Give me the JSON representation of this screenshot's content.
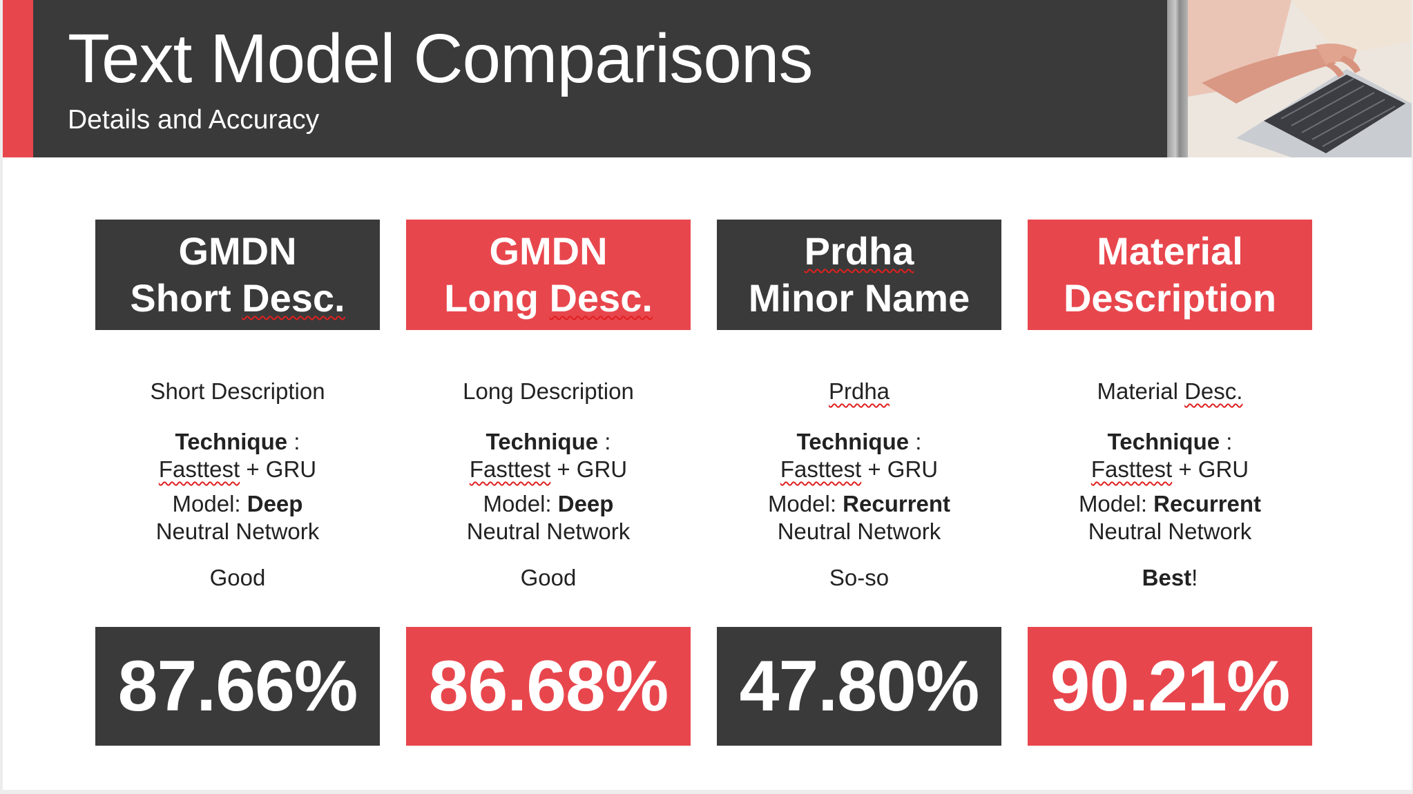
{
  "header": {
    "title": "Text Model Comparisons",
    "subtitle": "Details and Accuracy"
  },
  "colors": {
    "dark": "#3a3a3a",
    "red": "#e8464d"
  },
  "cards": [
    {
      "theme": "dark",
      "title_line1": "GMDN",
      "title_line2_a": "Short ",
      "title_line2_b": "Desc.",
      "source_a": "Short Description",
      "source_b": "",
      "technique_label": "Technique",
      "technique_sep": " :",
      "technique_a": "Fasttest",
      "technique_b": " + GRU",
      "model_label": "Model: ",
      "model_type": "Deep",
      "model_rest": "Neutral Network",
      "rating_bold": "",
      "rating_rest": "Good",
      "accuracy": "87.66%"
    },
    {
      "theme": "red",
      "title_line1": "GMDN",
      "title_line2_a": "Long ",
      "title_line2_b": "Desc.",
      "source_a": "Long Description",
      "source_b": "",
      "technique_label": "Technique",
      "technique_sep": " :",
      "technique_a": "Fasttest",
      "technique_b": " + GRU",
      "model_label": "Model: ",
      "model_type": "Deep",
      "model_rest": "Neutral Network",
      "rating_bold": "",
      "rating_rest": "Good",
      "accuracy": "86.68%"
    },
    {
      "theme": "dark",
      "title_line1": "Prdha",
      "title_line2_a": "Minor Name",
      "title_line2_b": "",
      "source_a": "",
      "source_b": "Prdha",
      "technique_label": "Technique",
      "technique_sep": " :",
      "technique_a": "Fasttest",
      "technique_b": " + GRU",
      "model_label": "Model: ",
      "model_type": "Recurrent",
      "model_rest": "Neutral Network",
      "rating_bold": "",
      "rating_rest": "So-so",
      "accuracy": "47.80%"
    },
    {
      "theme": "red",
      "title_line1": "Material",
      "title_line2_a": "Description",
      "title_line2_b": "",
      "source_a": "Material ",
      "source_b": "Desc.",
      "technique_label": "Technique",
      "technique_sep": " :",
      "technique_a": "Fasttest",
      "technique_b": " + GRU",
      "model_label": "Model: ",
      "model_type": "Recurrent",
      "model_rest": "Neutral Network",
      "rating_bold": "Best",
      "rating_rest": "!",
      "accuracy": "90.21%"
    }
  ]
}
